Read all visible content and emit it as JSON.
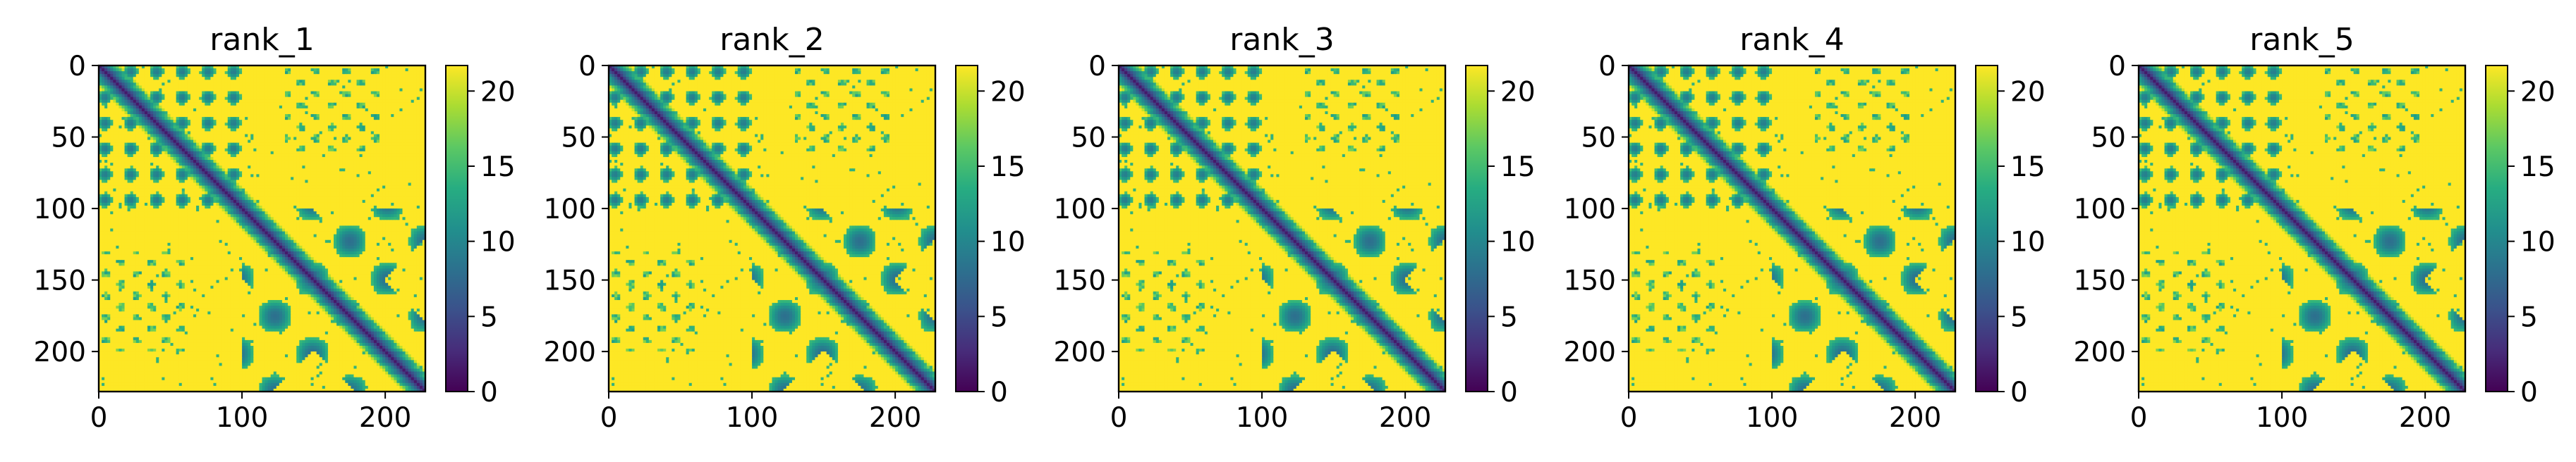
{
  "chart_data": [
    {
      "type": "heatmap",
      "title": "rank_1",
      "xlim": [
        0,
        228
      ],
      "ylim": [
        228,
        0
      ],
      "xticks": [
        0,
        100,
        200
      ],
      "yticks": [
        0,
        50,
        100,
        150,
        200
      ],
      "colorbar": {
        "colormap": "viridis",
        "range": [
          0,
          21.7
        ],
        "ticks": [
          0,
          5,
          10,
          15,
          20
        ]
      },
      "description": "Predicted aligned error / distance map of a 228-residue structure; dark diagonal (low values), structured off-diagonal blocks around residues 0-100 and 100-228, background saturated at ~21.7"
    },
    {
      "type": "heatmap",
      "title": "rank_2",
      "xlim": [
        0,
        228
      ],
      "ylim": [
        228,
        0
      ],
      "xticks": [
        0,
        100,
        200
      ],
      "yticks": [
        0,
        50,
        100,
        150,
        200
      ],
      "colorbar": {
        "colormap": "viridis",
        "range": [
          0,
          21.7
        ],
        "ticks": [
          0,
          5,
          10,
          15,
          20
        ]
      }
    },
    {
      "type": "heatmap",
      "title": "rank_3",
      "xlim": [
        0,
        228
      ],
      "ylim": [
        228,
        0
      ],
      "xticks": [
        0,
        100,
        200
      ],
      "yticks": [
        0,
        50,
        100,
        150,
        200
      ],
      "colorbar": {
        "colormap": "viridis",
        "range": [
          0,
          21.7
        ],
        "ticks": [
          0,
          5,
          10,
          15,
          20
        ]
      }
    },
    {
      "type": "heatmap",
      "title": "rank_4",
      "xlim": [
        0,
        228
      ],
      "ylim": [
        228,
        0
      ],
      "xticks": [
        0,
        100,
        200
      ],
      "yticks": [
        0,
        50,
        100,
        150,
        200
      ],
      "colorbar": {
        "colormap": "viridis",
        "range": [
          0,
          21.7
        ],
        "ticks": [
          0,
          5,
          10,
          15,
          20
        ]
      }
    },
    {
      "type": "heatmap",
      "title": "rank_5",
      "xlim": [
        0,
        228
      ],
      "ylim": [
        228,
        0
      ],
      "xticks": [
        0,
        100,
        200
      ],
      "yticks": [
        0,
        50,
        100,
        150,
        200
      ],
      "colorbar": {
        "colormap": "viridis",
        "range": [
          0,
          21.7
        ],
        "ticks": [
          0,
          5,
          10,
          15,
          20
        ]
      }
    }
  ],
  "colors": {
    "viridis": [
      "#440154",
      "#472c7a",
      "#3b518b",
      "#2c718e",
      "#21908d",
      "#27ad81",
      "#5cc863",
      "#aadc32",
      "#fde725"
    ]
  }
}
